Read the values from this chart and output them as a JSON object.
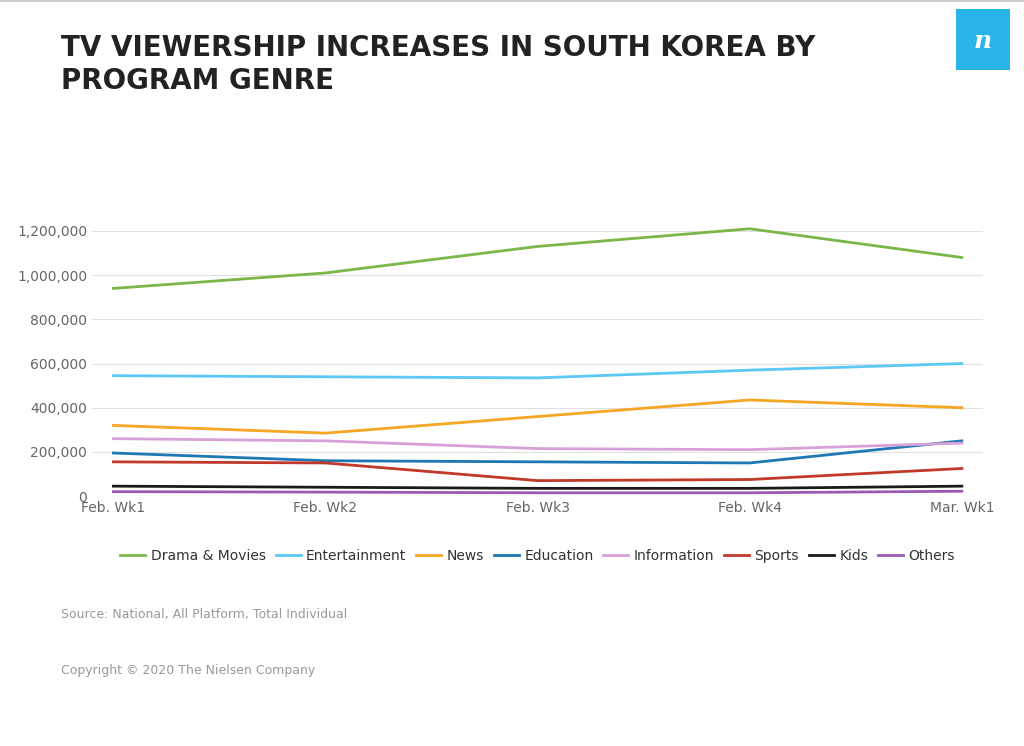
{
  "title": "TV VIEWERSHIP INCREASES IN SOUTH KOREA BY\nPROGRAM GENRE",
  "x_labels": [
    "Feb. Wk1",
    "Feb. Wk2",
    "Feb. Wk3",
    "Feb. Wk4",
    "Mar. Wk1"
  ],
  "series": [
    {
      "name": "Drama & Movies",
      "color": "#7ab648",
      "values": [
        940000,
        1010000,
        1130000,
        1210000,
        1080000
      ]
    },
    {
      "name": "Entertainment",
      "color": "#5bc8f5",
      "values": [
        545000,
        540000,
        535000,
        570000,
        600000
      ]
    },
    {
      "name": "News",
      "color": "#f5a623",
      "values": [
        320000,
        285000,
        360000,
        435000,
        400000
      ]
    },
    {
      "name": "Education",
      "color": "#1f77b4",
      "values": [
        195000,
        160000,
        155000,
        150000,
        250000
      ]
    },
    {
      "name": "Information",
      "color": "#d8a0d8",
      "values": [
        260000,
        250000,
        215000,
        210000,
        240000
      ]
    },
    {
      "name": "Sports",
      "color": "#c0392b",
      "values": [
        155000,
        150000,
        70000,
        75000,
        125000
      ]
    },
    {
      "name": "Kids",
      "color": "#1a1a1a",
      "values": [
        45000,
        40000,
        35000,
        35000,
        45000
      ]
    },
    {
      "name": "Others",
      "color": "#9b59b6",
      "values": [
        20000,
        18000,
        15000,
        15000,
        22000
      ]
    }
  ],
  "ylim": [
    0,
    1300000
  ],
  "yticks": [
    0,
    200000,
    400000,
    600000,
    800000,
    1000000,
    1200000
  ],
  "background_color": "#ffffff",
  "source_text": "Source: National, All Platform, Total Individual",
  "copyright_text": "Copyright © 2020 The Nielsen Company",
  "nielsen_box_color": "#29b5e8",
  "title_fontsize": 20,
  "legend_fontsize": 10,
  "tick_fontsize": 10
}
